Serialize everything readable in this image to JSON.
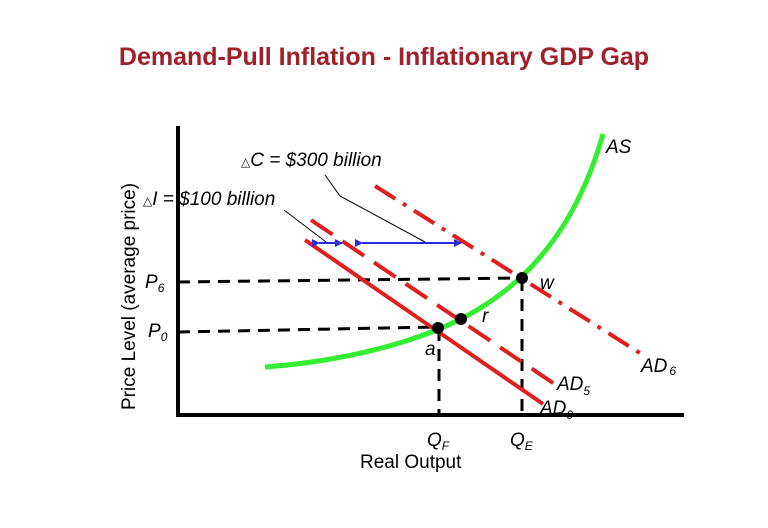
{
  "title": "Demand-Pull Inflation - Inflationary GDP Gap",
  "axes": {
    "y_label": "Price Level (average price)",
    "x_label": "Real Output"
  },
  "annotations": {
    "delta_c": {
      "symbol": "△",
      "text": "C = $300 billion"
    },
    "delta_i": {
      "symbol": "△",
      "text": "I = $100 billion"
    }
  },
  "curves": {
    "as": "AS",
    "ad0": {
      "base": "AD",
      "sub": "0"
    },
    "ad5": {
      "base": "AD",
      "sub": "5"
    },
    "ad6": {
      "base": "AD",
      "sub": "6"
    }
  },
  "points": {
    "w": "w",
    "r": "r",
    "a": "a"
  },
  "ticks": {
    "p6": {
      "base": "P",
      "sub": "6"
    },
    "p0": {
      "base": "P",
      "sub": "0"
    },
    "qf": {
      "base": "Q",
      "sub": "F"
    },
    "qe": {
      "base": "Q",
      "sub": "E"
    }
  },
  "colors": {
    "title": "#a0202a",
    "as_curve": "#33ee33",
    "ad_curves": "#e01e1e",
    "arrows": "#2a2ae0",
    "axes": "#000000"
  }
}
